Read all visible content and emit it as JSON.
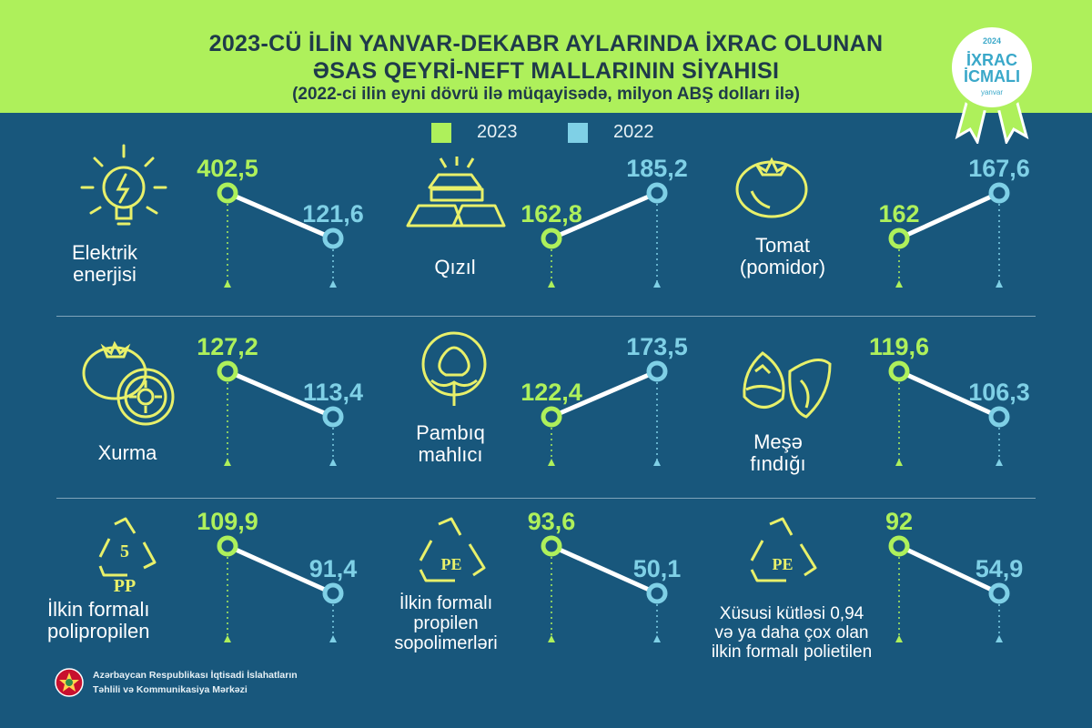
{
  "header": {
    "title_line1": "2023-CÜ İLİN YANVAR-DEKABR AYLARINDA İXRAC OLUNAN",
    "title_line2": "ƏSAS QEYRİ-NEFT MALLARININ SİYAHISI",
    "subtitle": "(2022-ci ilin eyni dövrü ilə müqayisədə, milyon ABŞ dolları ilə)"
  },
  "badge": {
    "year": "2024",
    "line1": "İXRAC",
    "line2": "İCMALI",
    "month": "yanvar"
  },
  "colors": {
    "green": "#aef05b",
    "blue": "#7fd0e6",
    "background": "#18577c",
    "header": "#aef05b"
  },
  "chart_data": {
    "type": "line",
    "series": [
      {
        "name": "2023"
      },
      {
        "name": "2022"
      }
    ],
    "items": [
      {
        "product": "Elektrik enerjisi",
        "icon": "lightbulb-icon",
        "label_2023": "402,5",
        "label_2022": "121,6",
        "v2023": 402.5,
        "v2022": 121.6
      },
      {
        "product": "Qızıl",
        "icon": "gold-bars-icon",
        "label_2023": "162,8",
        "label_2022": "185,2",
        "v2023": 162.8,
        "v2022": 185.2
      },
      {
        "product": "Tomat (pomidor)",
        "icon": "tomato-icon",
        "label_2023": "162",
        "label_2022": "167,6",
        "v2023": 162,
        "v2022": 167.6
      },
      {
        "product": "Xurma",
        "icon": "persimmon-icon",
        "label_2023": "127,2",
        "label_2022": "113,4",
        "v2023": 127.2,
        "v2022": 113.4
      },
      {
        "product": "Pambıq mahlıcı",
        "icon": "cotton-icon",
        "label_2023": "122,4",
        "label_2022": "173,5",
        "v2023": 122.4,
        "v2022": 173.5
      },
      {
        "product": "Meşə fındığı",
        "icon": "hazelnut-icon",
        "label_2023": "119,6",
        "label_2022": "106,3",
        "v2023": 119.6,
        "v2022": 106.3
      },
      {
        "product": "İlkin formalı polipropilen",
        "icon": "recycle-pp-icon",
        "icon_text": "5",
        "icon_code": "PP",
        "label_2023": "109,9",
        "label_2022": "91,4",
        "v2023": 109.9,
        "v2022": 91.4
      },
      {
        "product": "İlkin formalı propilen sopolimerləri",
        "icon": "recycle-pe-icon",
        "icon_code": "PE",
        "label_2023": "93,6",
        "label_2022": "50,1",
        "v2023": 93.6,
        "v2022": 50.1
      },
      {
        "product": "Xüsusi kütləsi 0,94 və ya daha çox olan ilkin formalı polietilen",
        "icon": "recycle-pe-icon",
        "icon_code": "PE",
        "label_2023": "92",
        "label_2022": "54,9",
        "v2023": 92,
        "v2022": 54.9
      }
    ]
  },
  "labels": {
    "p0": [
      "Elektrik",
      "enerjisi"
    ],
    "p1": [
      "Qızıl"
    ],
    "p2": [
      "Tomat",
      "(pomidor)"
    ],
    "p3": [
      "Xurma"
    ],
    "p4": [
      "Pambıq",
      "mahlıcı"
    ],
    "p5": [
      "Meşə",
      "fındığı"
    ],
    "p6": [
      "İlkin formalı",
      "polipropilen"
    ],
    "p7": [
      "İlkin formalı",
      "propilen",
      "sopolimerləri"
    ],
    "p8": [
      "Xüsusi kütləsi 0,94",
      "və ya daha çox olan",
      "ilkin formalı polietilen"
    ]
  },
  "footer": {
    "line1": "Azərbaycan Respublikası İqtisadi İslahatların",
    "line2": "Təhlili və Kommunikasiya Mərkəzi"
  }
}
